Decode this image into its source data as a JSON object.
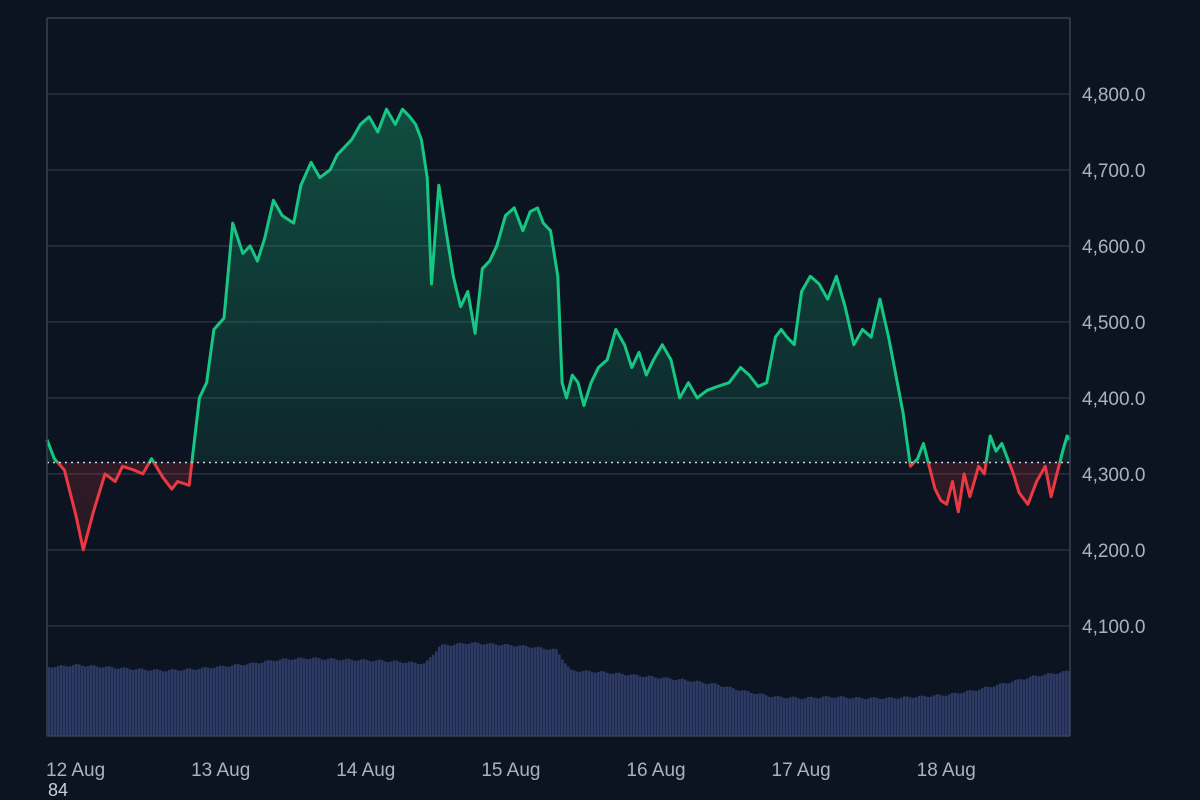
{
  "chart_data": {
    "type": "area",
    "title": "",
    "xlabel": "",
    "ylabel": "",
    "x_tick_labels": [
      "12 Aug",
      "13 Aug",
      "14 Aug",
      "15 Aug",
      "16 Aug",
      "17 Aug",
      "18 Aug"
    ],
    "y_ticks": [
      4100,
      4200,
      4300,
      4400,
      4500,
      4600,
      4700,
      4800
    ],
    "y_tick_labels": [
      "4,100.0",
      "4,200.0",
      "4,300.0",
      "4,400.0",
      "4,500.0",
      "4,600.0",
      "4,700.0",
      "4,800.0"
    ],
    "ylim": [
      3955,
      4900
    ],
    "xlim_days": [
      12.0,
      19.05
    ],
    "baseline": 4315,
    "grid": true,
    "axis_side": "right",
    "colors": {
      "background": "#0d1421",
      "grid": "#2a3140",
      "frame": "#3a4252",
      "above": "#16c784",
      "below": "#ea3943",
      "volume": "#2e3a66",
      "baseline": "#d0d4dc"
    },
    "price_series": {
      "x_day": [
        12.0,
        12.05,
        12.12,
        12.2,
        12.25,
        12.32,
        12.4,
        12.47,
        12.52,
        12.6,
        12.66,
        12.72,
        12.8,
        12.86,
        12.9,
        12.98,
        13.05,
        13.1,
        13.15,
        13.22,
        13.28,
        13.35,
        13.4,
        13.45,
        13.5,
        13.56,
        13.62,
        13.7,
        13.75,
        13.82,
        13.88,
        13.95,
        14.0,
        14.05,
        14.1,
        14.16,
        14.22,
        14.28,
        14.34,
        14.4,
        14.45,
        14.5,
        14.54,
        14.58,
        14.62,
        14.65,
        14.7,
        14.75,
        14.8,
        14.85,
        14.9,
        14.95,
        15.0,
        15.05,
        15.1,
        15.16,
        15.22,
        15.28,
        15.33,
        15.38,
        15.42,
        15.47,
        15.52,
        15.55,
        15.58,
        15.62,
        15.66,
        15.7,
        15.75,
        15.8,
        15.86,
        15.92,
        15.98,
        16.03,
        16.08,
        16.13,
        16.18,
        16.24,
        16.3,
        16.36,
        16.42,
        16.48,
        16.55,
        16.62,
        16.7,
        16.78,
        16.84,
        16.9,
        16.96,
        17.02,
        17.06,
        17.1,
        17.15,
        17.2,
        17.26,
        17.32,
        17.38,
        17.44,
        17.5,
        17.56,
        17.62,
        17.68,
        17.74,
        17.8,
        17.86,
        17.9,
        17.95,
        18.0,
        18.04,
        18.08,
        18.12,
        18.16,
        18.2,
        18.24,
        18.28,
        18.32,
        18.36,
        18.42,
        18.46,
        18.5,
        18.54,
        18.58,
        18.62,
        18.66,
        18.7,
        18.76,
        18.82,
        18.88,
        18.92,
        18.96,
        19.0,
        19.03,
        19.05
      ],
      "price": [
        4345,
        4320,
        4305,
        4245,
        4200,
        4250,
        4300,
        4290,
        4310,
        4305,
        4300,
        4320,
        4295,
        4280,
        4290,
        4285,
        4400,
        4420,
        4490,
        4505,
        4630,
        4590,
        4600,
        4580,
        4610,
        4660,
        4640,
        4630,
        4680,
        4710,
        4690,
        4700,
        4720,
        4730,
        4740,
        4760,
        4770,
        4750,
        4780,
        4760,
        4780,
        4770,
        4760,
        4740,
        4690,
        4550,
        4680,
        4620,
        4560,
        4520,
        4540,
        4485,
        4570,
        4580,
        4600,
        4640,
        4650,
        4620,
        4645,
        4650,
        4630,
        4620,
        4560,
        4420,
        4400,
        4430,
        4420,
        4390,
        4420,
        4440,
        4450,
        4490,
        4470,
        4440,
        4460,
        4430,
        4450,
        4470,
        4450,
        4400,
        4420,
        4400,
        4410,
        4415,
        4420,
        4440,
        4430,
        4415,
        4420,
        4480,
        4490,
        4480,
        4470,
        4540,
        4560,
        4550,
        4530,
        4560,
        4520,
        4470,
        4490,
        4480,
        4530,
        4480,
        4420,
        4380,
        4310,
        4320,
        4340,
        4310,
        4280,
        4265,
        4260,
        4290,
        4250,
        4300,
        4270,
        4310,
        4300,
        4350,
        4330,
        4340,
        4320,
        4300,
        4275,
        4260,
        4290,
        4310,
        4270,
        4300,
        4330,
        4350,
        4345,
        4325,
        4318
      ]
    },
    "volume_series": {
      "x_day": [
        12.0,
        12.2,
        12.4,
        12.6,
        12.8,
        13.0,
        13.2,
        13.4,
        13.6,
        13.8,
        14.0,
        14.2,
        14.4,
        14.6,
        14.7,
        14.9,
        15.1,
        15.3,
        15.5,
        15.6,
        15.8,
        16.0,
        16.2,
        16.4,
        16.6,
        16.8,
        17.0,
        17.2,
        17.4,
        17.6,
        17.8,
        18.0,
        18.2,
        18.4,
        18.6,
        18.8,
        19.0,
        19.05
      ],
      "level": [
        0.55,
        0.58,
        0.55,
        0.52,
        0.5,
        0.52,
        0.56,
        0.6,
        0.66,
        0.68,
        0.66,
        0.65,
        0.63,
        0.6,
        0.86,
        0.9,
        0.88,
        0.85,
        0.8,
        0.5,
        0.48,
        0.44,
        0.4,
        0.36,
        0.3,
        0.2,
        0.12,
        0.1,
        0.12,
        0.1,
        0.1,
        0.12,
        0.15,
        0.22,
        0.32,
        0.42,
        0.48,
        0.5
      ]
    }
  },
  "footer_note": "84"
}
